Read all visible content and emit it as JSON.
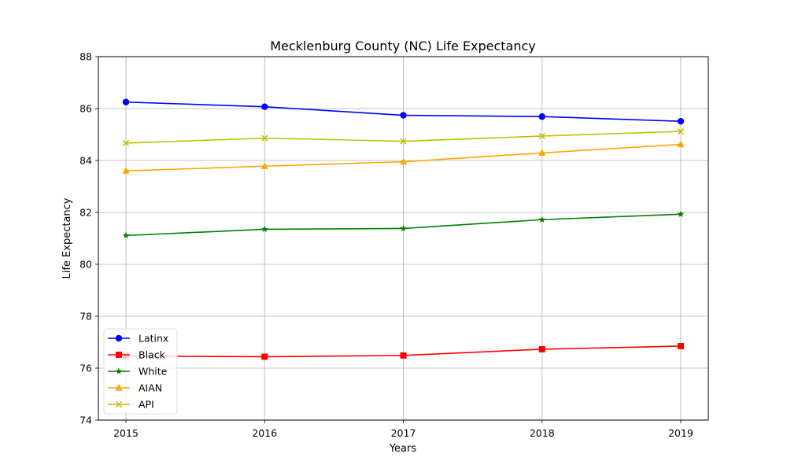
{
  "chart_data": {
    "type": "line",
    "title": "Mecklenburg County (NC) Life Expectancy",
    "xlabel": "Years",
    "ylabel": "Life Expectancy",
    "x": [
      "2015",
      "2016",
      "2017",
      "2018",
      "2019"
    ],
    "ylim": [
      74,
      88
    ],
    "yticks": [
      "74",
      "76",
      "78",
      "80",
      "82",
      "84",
      "86",
      "88"
    ],
    "grid": true,
    "legend_position": "lower-left",
    "series": [
      {
        "name": "Latinx",
        "color": "#0000ff",
        "marker": "circle",
        "values": [
          86.25,
          86.07,
          85.74,
          85.69,
          85.51
        ]
      },
      {
        "name": "Black",
        "color": "#ff0000",
        "marker": "square",
        "values": [
          76.47,
          76.44,
          76.49,
          76.73,
          76.85
        ]
      },
      {
        "name": "White",
        "color": "#008000",
        "marker": "star",
        "values": [
          81.11,
          81.35,
          81.38,
          81.72,
          81.93
        ]
      },
      {
        "name": "AIAN",
        "color": "#ffa500",
        "marker": "triangle",
        "values": [
          83.6,
          83.78,
          83.95,
          84.29,
          84.62
        ]
      },
      {
        "name": "API",
        "color": "#bfbf00",
        "marker": "x",
        "values": [
          84.67,
          84.86,
          84.74,
          84.94,
          85.12
        ]
      }
    ]
  }
}
